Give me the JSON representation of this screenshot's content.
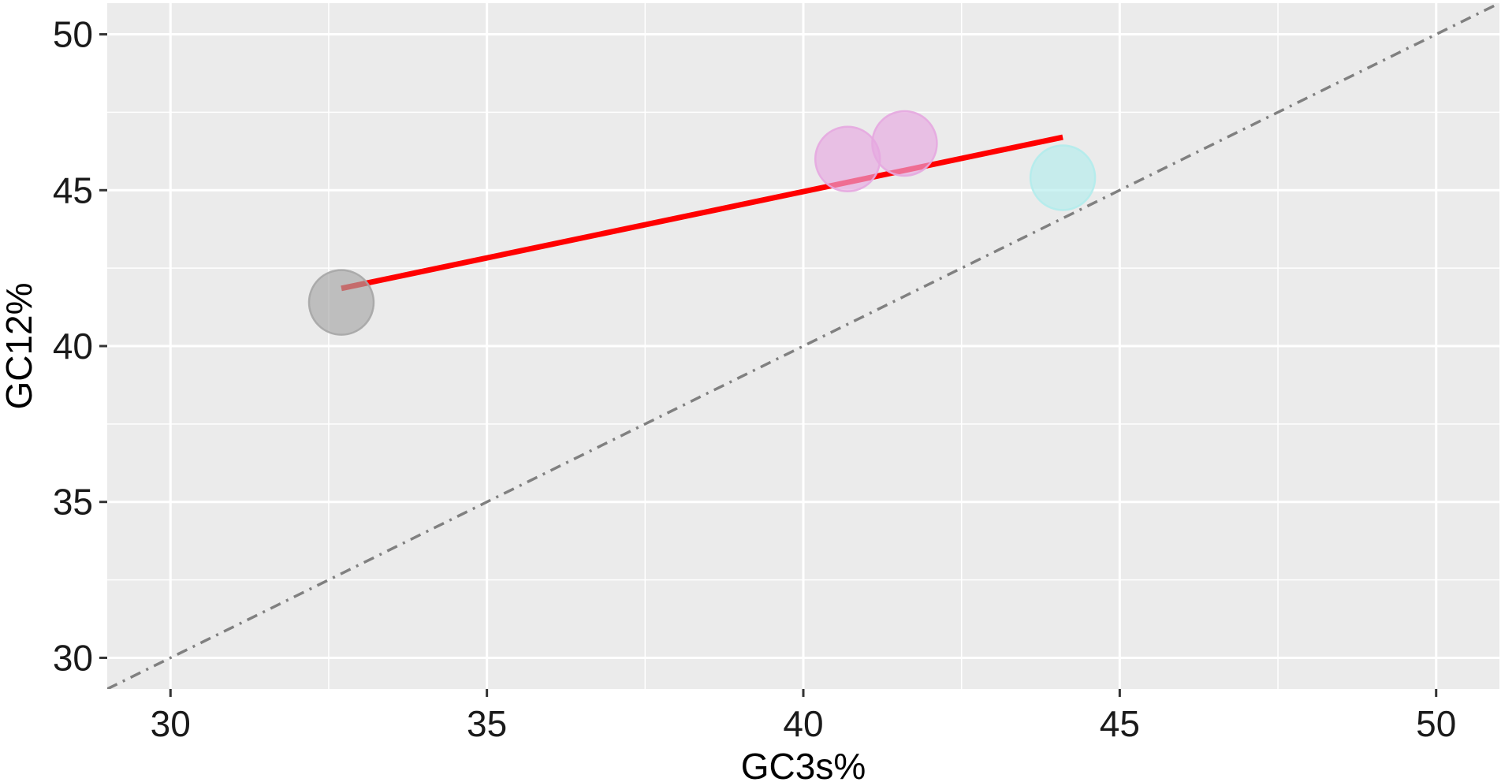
{
  "chart_data": {
    "type": "scatter",
    "title": "",
    "xlabel": "GC3s%",
    "ylabel": "GC12%",
    "xlim": [
      29,
      51
    ],
    "ylim": [
      29,
      51
    ],
    "x_ticks": [
      30,
      35,
      40,
      45,
      50
    ],
    "y_ticks": [
      30,
      35,
      40,
      45,
      50
    ],
    "grid": true,
    "legend": "none",
    "points": [
      {
        "x": 32.7,
        "y": 41.4,
        "color": "#a6a6a6"
      },
      {
        "x": 40.7,
        "y": 46.0,
        "color": "#e6a8e0"
      },
      {
        "x": 41.6,
        "y": 46.5,
        "color": "#e6a8e0"
      },
      {
        "x": 44.1,
        "y": 45.4,
        "color": "#b2ecec"
      }
    ],
    "regression_line": {
      "x": [
        32.7,
        44.1
      ],
      "y": [
        41.85,
        46.7
      ],
      "color": "#ff0000"
    },
    "reference_line": {
      "x": [
        29,
        51
      ],
      "y": [
        29,
        51
      ],
      "color": "#808080",
      "style": "dash-dot"
    },
    "colors": {
      "panel_background": "#ebebeb",
      "grid": "#ffffff"
    }
  }
}
